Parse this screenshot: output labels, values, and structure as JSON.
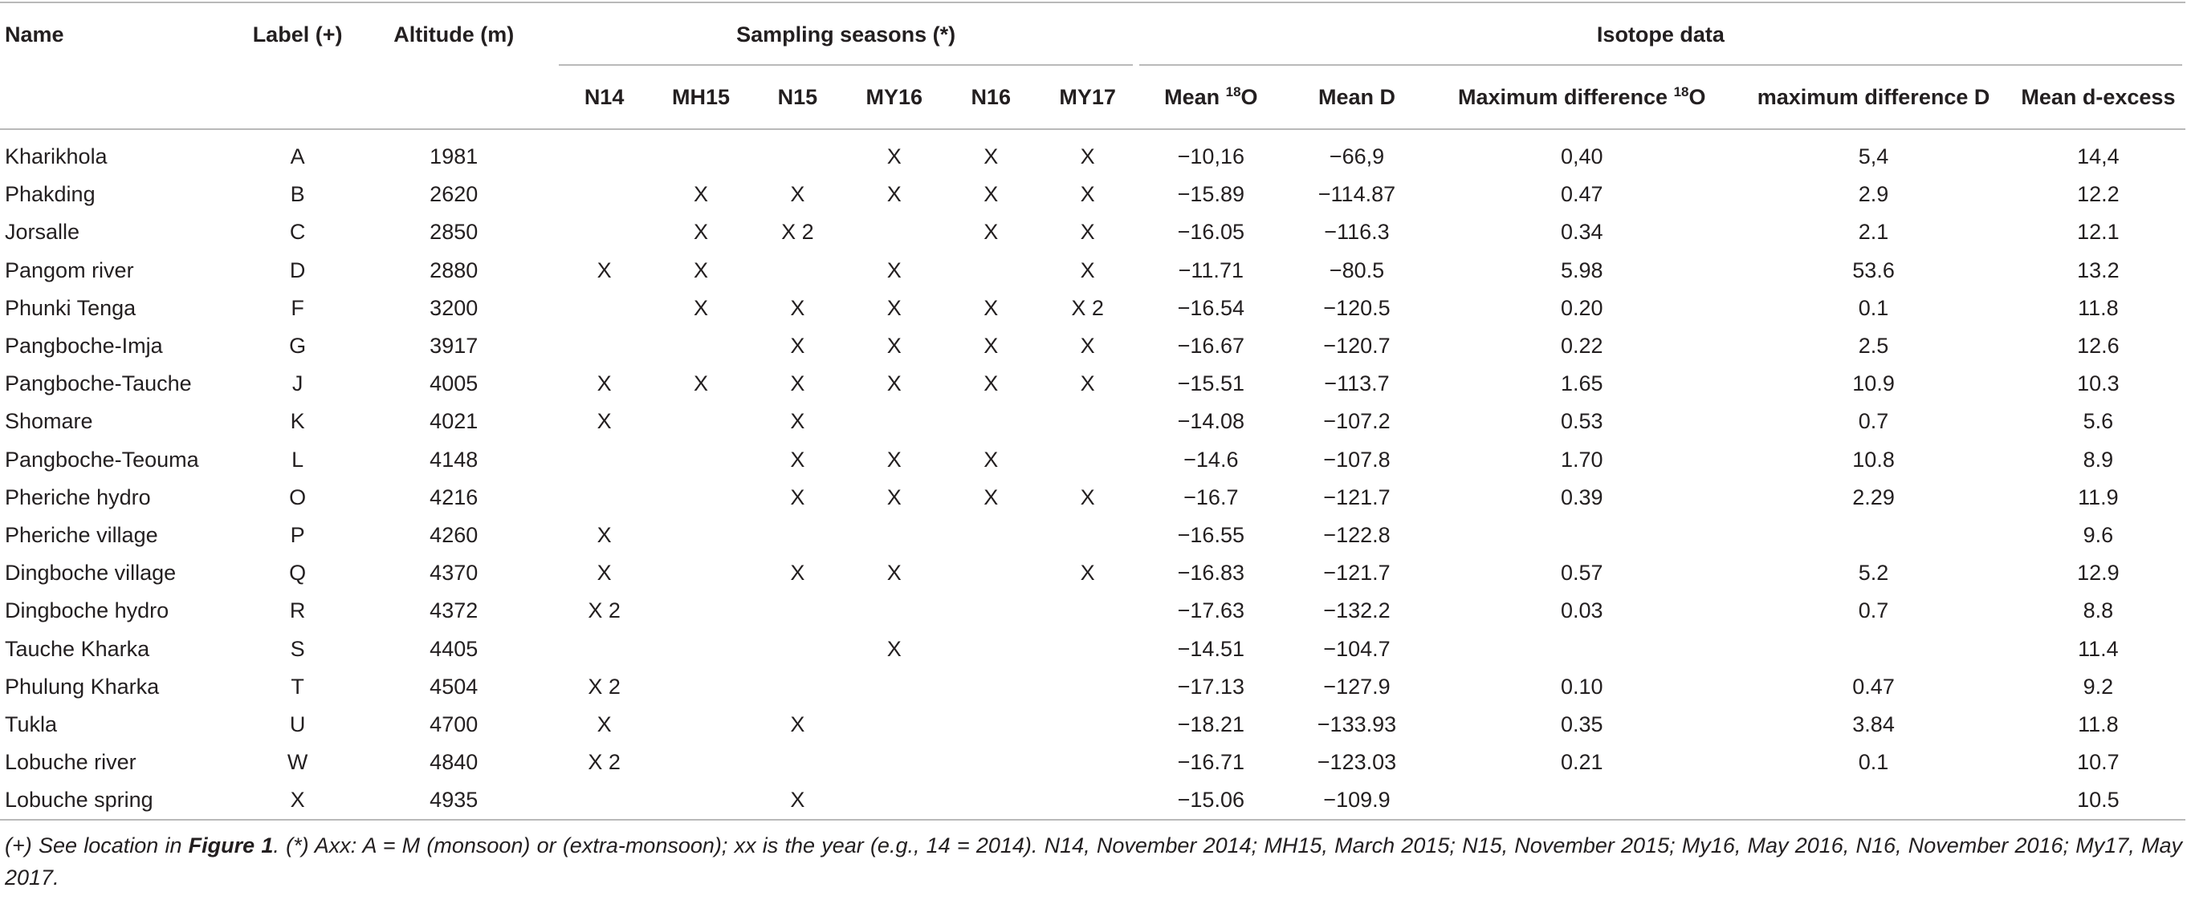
{
  "headers": {
    "name": "Name",
    "label": "Label (+)",
    "altitude": "Altitude (m)",
    "sampling_group": "Sampling seasons (*)",
    "isotope_group": "Isotope data",
    "seasons": [
      "N14",
      "MH15",
      "N15",
      "MY16",
      "N16",
      "MY17"
    ],
    "mean_o18_prefix": "Mean ",
    "mean_o18_sup": "18",
    "mean_o18_suffix": "O",
    "mean_d": "Mean D",
    "maxdiff_o18_prefix": "Maximum difference ",
    "maxdiff_o18_sup": "18",
    "maxdiff_o18_suffix": "O",
    "maxdiff_d": "maximum difference D",
    "mean_dexcess": "Mean d-excess"
  },
  "rows": [
    {
      "name": "Kharikhola",
      "label": "A",
      "altitude": "1981",
      "n14": "",
      "mh15": "",
      "n15": "",
      "my16": "X",
      "n16": "X",
      "my17": "X",
      "mean_o18": "−10,16",
      "mean_d": "−66,9",
      "maxdiff_o18": "0,40",
      "maxdiff_d": "5,4",
      "dexcess": "14,4"
    },
    {
      "name": "Phakding",
      "label": "B",
      "altitude": "2620",
      "n14": "",
      "mh15": "X",
      "n15": "X",
      "my16": "X",
      "n16": "X",
      "my17": "X",
      "mean_o18": "−15.89",
      "mean_d": "−114.87",
      "maxdiff_o18": "0.47",
      "maxdiff_d": "2.9",
      "dexcess": "12.2"
    },
    {
      "name": "Jorsalle",
      "label": "C",
      "altitude": "2850",
      "n14": "",
      "mh15": "X",
      "n15": "X 2",
      "my16": "",
      "n16": "X",
      "my17": "X",
      "mean_o18": "−16.05",
      "mean_d": "−116.3",
      "maxdiff_o18": "0.34",
      "maxdiff_d": "2.1",
      "dexcess": "12.1"
    },
    {
      "name": "Pangom river",
      "label": "D",
      "altitude": "2880",
      "n14": "X",
      "mh15": "X",
      "n15": "",
      "my16": "X",
      "n16": "",
      "my17": "X",
      "mean_o18": "−11.71",
      "mean_d": "−80.5",
      "maxdiff_o18": "5.98",
      "maxdiff_d": "53.6",
      "dexcess": "13.2"
    },
    {
      "name": "Phunki Tenga",
      "label": "F",
      "altitude": "3200",
      "n14": "",
      "mh15": "X",
      "n15": "X",
      "my16": "X",
      "n16": "X",
      "my17": "X 2",
      "mean_o18": "−16.54",
      "mean_d": "−120.5",
      "maxdiff_o18": "0.20",
      "maxdiff_d": "0.1",
      "dexcess": "11.8"
    },
    {
      "name": "Pangboche-Imja",
      "label": "G",
      "altitude": "3917",
      "n14": "",
      "mh15": "",
      "n15": "X",
      "my16": "X",
      "n16": "X",
      "my17": "X",
      "mean_o18": "−16.67",
      "mean_d": "−120.7",
      "maxdiff_o18": "0.22",
      "maxdiff_d": "2.5",
      "dexcess": "12.6"
    },
    {
      "name": "Pangboche-Tauche",
      "label": "J",
      "altitude": "4005",
      "n14": "X",
      "mh15": "X",
      "n15": "X",
      "my16": "X",
      "n16": "X",
      "my17": "X",
      "mean_o18": "−15.51",
      "mean_d": "−113.7",
      "maxdiff_o18": "1.65",
      "maxdiff_d": "10.9",
      "dexcess": "10.3"
    },
    {
      "name": "Shomare",
      "label": "K",
      "altitude": "4021",
      "n14": "X",
      "mh15": "",
      "n15": "X",
      "my16": "",
      "n16": "",
      "my17": "",
      "mean_o18": "−14.08",
      "mean_d": "−107.2",
      "maxdiff_o18": "0.53",
      "maxdiff_d": "0.7",
      "dexcess": "5.6"
    },
    {
      "name": "Pangboche-Teouma",
      "label": "L",
      "altitude": "4148",
      "n14": "",
      "mh15": "",
      "n15": "X",
      "my16": "X",
      "n16": "X",
      "my17": "",
      "mean_o18": "−14.6",
      "mean_d": "−107.8",
      "maxdiff_o18": "1.70",
      "maxdiff_d": "10.8",
      "dexcess": "8.9"
    },
    {
      "name": "Pheriche hydro",
      "label": "O",
      "altitude": "4216",
      "n14": "",
      "mh15": "",
      "n15": "X",
      "my16": "X",
      "n16": "X",
      "my17": "X",
      "mean_o18": "−16.7",
      "mean_d": "−121.7",
      "maxdiff_o18": "0.39",
      "maxdiff_d": "2.29",
      "dexcess": "11.9"
    },
    {
      "name": "Pheriche village",
      "label": "P",
      "altitude": "4260",
      "n14": "X",
      "mh15": "",
      "n15": "",
      "my16": "",
      "n16": "",
      "my17": "",
      "mean_o18": "−16.55",
      "mean_d": "−122.8",
      "maxdiff_o18": "",
      "maxdiff_d": "",
      "dexcess": "9.6"
    },
    {
      "name": "Dingboche village",
      "label": "Q",
      "altitude": "4370",
      "n14": "X",
      "mh15": "",
      "n15": "X",
      "my16": "X",
      "n16": "",
      "my17": "X",
      "mean_o18": "−16.83",
      "mean_d": "−121.7",
      "maxdiff_o18": "0.57",
      "maxdiff_d": "5.2",
      "dexcess": "12.9"
    },
    {
      "name": "Dingboche hydro",
      "label": "R",
      "altitude": "4372",
      "n14": "X 2",
      "mh15": "",
      "n15": "",
      "my16": "",
      "n16": "",
      "my17": "",
      "mean_o18": "−17.63",
      "mean_d": "−132.2",
      "maxdiff_o18": "0.03",
      "maxdiff_d": "0.7",
      "dexcess": "8.8"
    },
    {
      "name": "Tauche Kharka",
      "label": "S",
      "altitude": "4405",
      "n14": "",
      "mh15": "",
      "n15": "",
      "my16": "X",
      "n16": "",
      "my17": "",
      "mean_o18": "−14.51",
      "mean_d": "−104.7",
      "maxdiff_o18": "",
      "maxdiff_d": "",
      "dexcess": "11.4"
    },
    {
      "name": "Phulung Kharka",
      "label": "T",
      "altitude": "4504",
      "n14": "X 2",
      "mh15": "",
      "n15": "",
      "my16": "",
      "n16": "",
      "my17": "",
      "mean_o18": "−17.13",
      "mean_d": "−127.9",
      "maxdiff_o18": "0.10",
      "maxdiff_d": "0.47",
      "dexcess": "9.2"
    },
    {
      "name": "Tukla",
      "label": "U",
      "altitude": "4700",
      "n14": "X",
      "mh15": "",
      "n15": "X",
      "my16": "",
      "n16": "",
      "my17": "",
      "mean_o18": "−18.21",
      "mean_d": "−133.93",
      "maxdiff_o18": "0.35",
      "maxdiff_d": "3.84",
      "dexcess": "11.8"
    },
    {
      "name": "Lobuche river",
      "label": "W",
      "altitude": "4840",
      "n14": "X 2",
      "mh15": "",
      "n15": "",
      "my16": "",
      "n16": "",
      "my17": "",
      "mean_o18": "−16.71",
      "mean_d": "−123.03",
      "maxdiff_o18": "0.21",
      "maxdiff_d": "0.1",
      "dexcess": "10.7"
    },
    {
      "name": "Lobuche spring",
      "label": "X",
      "altitude": "4935",
      "n14": "",
      "mh15": "",
      "n15": "X",
      "my16": "",
      "n16": "",
      "my17": "",
      "mean_o18": "−15.06",
      "mean_d": "−109.9",
      "maxdiff_o18": "",
      "maxdiff_d": "",
      "dexcess": "10.5"
    }
  ],
  "footnote": {
    "part1": "(+) See location in ",
    "figure_ref": "Figure 1",
    "part2": ". (*) Axx: A = M (monsoon) or (extra-monsoon); xx is the year (e.g., 14 = 2014). N14, November 2014; MH15, March 2015; N15, November 2015; My16, May 2016, N16, November 2016; My17, May 2017."
  }
}
